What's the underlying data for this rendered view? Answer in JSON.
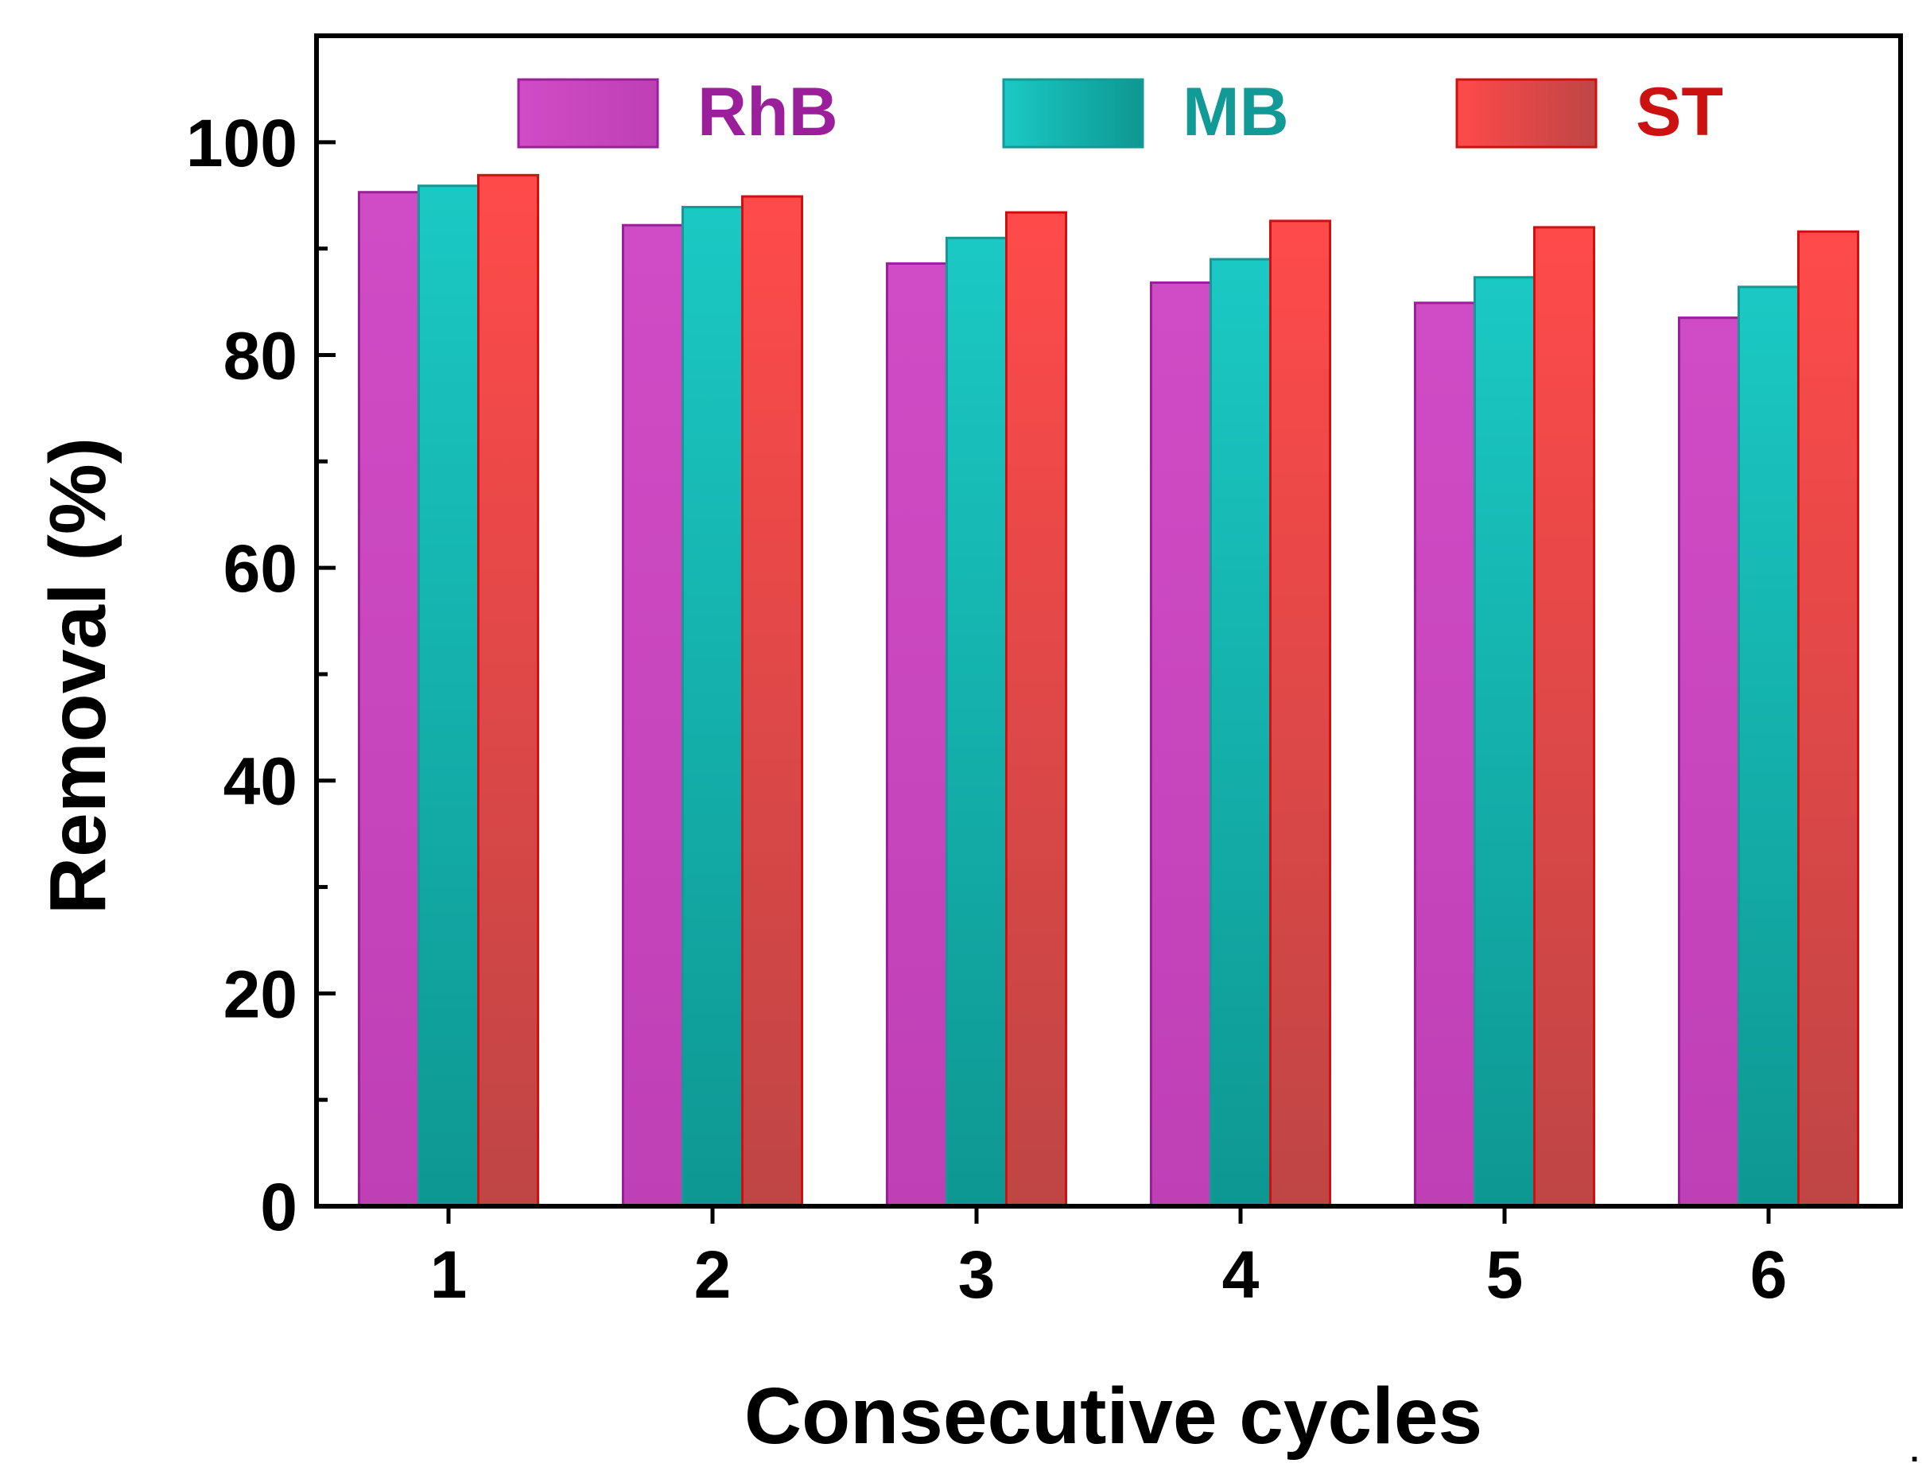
{
  "chart_data": {
    "type": "bar",
    "title": "",
    "xlabel": "Consecutive cycles",
    "ylabel": "Removal (%)",
    "categories": [
      "1",
      "2",
      "3",
      "4",
      "5",
      "6"
    ],
    "ylim": [
      0,
      110
    ],
    "yticks": [
      0,
      20,
      40,
      60,
      80,
      100
    ],
    "grid": false,
    "legend_position": "top",
    "series": [
      {
        "name": "RhB",
        "values": [
          95.3,
          92.2,
          88.6,
          86.8,
          84.9,
          83.5
        ],
        "color": "#CC44BB",
        "label_color": "#9B1F9B"
      },
      {
        "name": "MB",
        "values": [
          95.9,
          93.9,
          91.0,
          89.0,
          87.3,
          86.4
        ],
        "color": "#16B3AE",
        "label_color": "#129A96"
      },
      {
        "name": "ST",
        "values": [
          96.9,
          94.9,
          93.4,
          92.6,
          92.0,
          91.6
        ],
        "color": "#E84848",
        "label_color": "#CC1111"
      }
    ]
  },
  "trailing_mark": "."
}
